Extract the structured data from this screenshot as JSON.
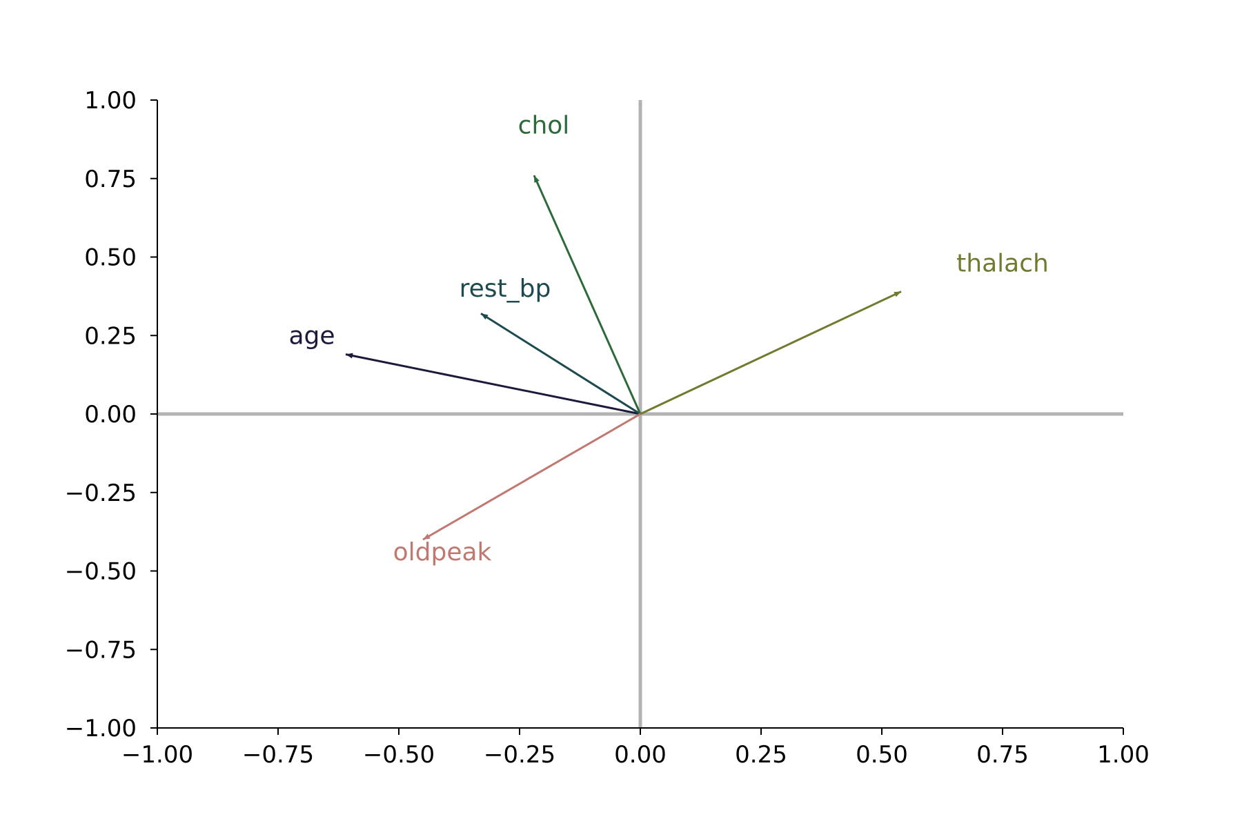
{
  "chart_data": {
    "type": "biplot-vectors",
    "xlim": [
      -1.0,
      1.0
    ],
    "ylim": [
      -1.0,
      1.0
    ],
    "x_ticks": [
      "−1.00",
      "−0.75",
      "−0.50",
      "−0.25",
      "0.00",
      "0.25",
      "0.50",
      "0.75",
      "1.00"
    ],
    "y_ticks": [
      "−1.00",
      "−0.75",
      "−0.50",
      "−0.25",
      "0.00",
      "0.25",
      "0.50",
      "0.75",
      "1.00"
    ],
    "x_tick_values": [
      -1.0,
      -0.75,
      -0.5,
      -0.25,
      0.0,
      0.25,
      0.5,
      0.75,
      1.0
    ],
    "y_tick_values": [
      -1.0,
      -0.75,
      -0.5,
      -0.25,
      0.0,
      0.25,
      0.5,
      0.75,
      1.0
    ],
    "reference_lines": {
      "x": 0.0,
      "y": 0.0,
      "color": "#b3b3b3"
    },
    "grid": false,
    "vectors": [
      {
        "name": "age",
        "x": -0.61,
        "y": 0.19,
        "label_x": -0.68,
        "label_y": 0.25,
        "color": "#1c1a3a"
      },
      {
        "name": "rest_bp",
        "x": -0.33,
        "y": 0.32,
        "label_x": -0.28,
        "label_y": 0.4,
        "color": "#1d4a4e"
      },
      {
        "name": "chol",
        "x": -0.22,
        "y": 0.76,
        "label_x": -0.2,
        "label_y": 0.92,
        "color": "#2d6a3a"
      },
      {
        "name": "thalach",
        "x": 0.54,
        "y": 0.39,
        "label_x": 0.75,
        "label_y": 0.48,
        "color": "#737a30"
      },
      {
        "name": "oldpeak",
        "x": -0.45,
        "y": -0.4,
        "label_x": -0.41,
        "label_y": -0.44,
        "color": "#c07870"
      }
    ]
  }
}
